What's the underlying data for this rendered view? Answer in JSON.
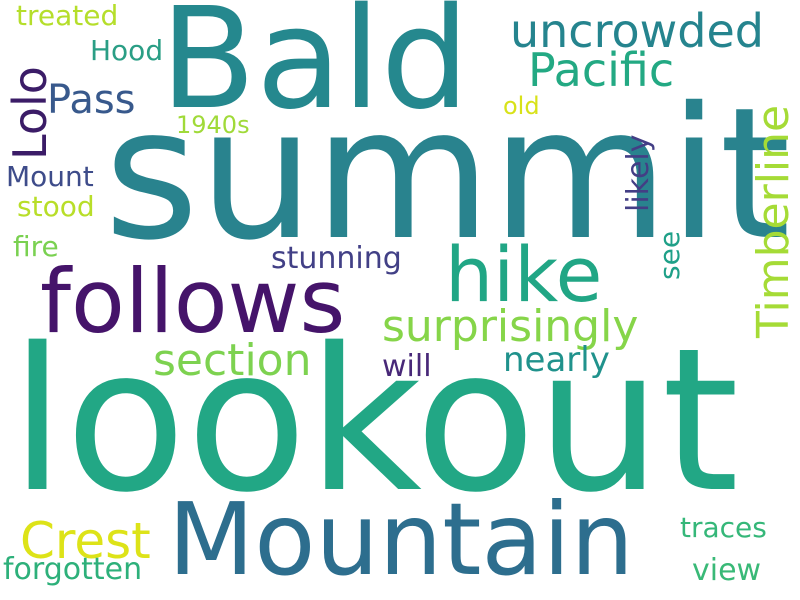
{
  "word_cloud": {
    "words": [
      {
        "text": "summit",
        "color": "#29838e"
      },
      {
        "text": "lookout",
        "color": "#22a785"
      },
      {
        "text": "Mountain",
        "color": "#2d6e8e"
      },
      {
        "text": "Bald",
        "color": "#25888e"
      },
      {
        "text": "follows",
        "color": "#45146a"
      },
      {
        "text": "hike",
        "color": "#21a685"
      },
      {
        "text": "surprisingly",
        "color": "#86d549"
      },
      {
        "text": "section",
        "color": "#7dd250"
      },
      {
        "text": "uncrowded",
        "color": "#25848e"
      },
      {
        "text": "Pacific",
        "color": "#23a983"
      },
      {
        "text": "Pass",
        "color": "#38598c"
      },
      {
        "text": "Crest",
        "color": "#dde318"
      },
      {
        "text": "Lolo",
        "color": "#3b1c67"
      },
      {
        "text": "Timberline",
        "color": "#a5db36"
      },
      {
        "text": "nearly",
        "color": "#20928c"
      },
      {
        "text": "forgotten",
        "color": "#2db07a"
      },
      {
        "text": "stunning",
        "color": "#424086"
      },
      {
        "text": "traces",
        "color": "#35b779"
      },
      {
        "text": "view",
        "color": "#39b977"
      },
      {
        "text": "will",
        "color": "#482878"
      },
      {
        "text": "likely",
        "color": "#433e85"
      },
      {
        "text": "treated",
        "color": "#b5de2b"
      },
      {
        "text": "Hood",
        "color": "#2a9e85"
      },
      {
        "text": "old",
        "color": "#d8e219"
      },
      {
        "text": "1940s",
        "color": "#a0da39"
      },
      {
        "text": "Mount",
        "color": "#3e4c8a"
      },
      {
        "text": "stood",
        "color": "#b8de29"
      },
      {
        "text": "fire",
        "color": "#7ad151"
      },
      {
        "text": "see",
        "color": "#1fa088"
      }
    ]
  }
}
